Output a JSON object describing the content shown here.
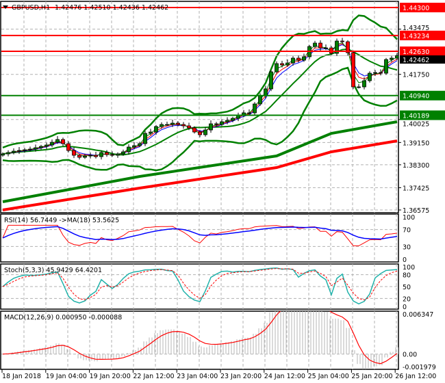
{
  "header": {
    "symbol": "GBPUSD,H1",
    "ohlc": "1.42476 1.42510 1.42436 1.42462"
  },
  "colors": {
    "bull": "#008000",
    "bear": "#ff0000",
    "resistance": "#ff0000",
    "support": "#008000",
    "bollinger": "#008000",
    "ma_fast_blue": "#0000ff",
    "ma_fast_red": "#ff0000",
    "ma_slow_green": "#008000",
    "ma_slow_red": "#ff0000",
    "stoch_main": "#20b2aa",
    "macd_hist": "#c0c0c0"
  },
  "chart_data": [
    {
      "type": "candlestick",
      "title": "GBPUSD,H1 1.42476 1.42510 1.42436 1.42462",
      "ylim": [
        1.36575,
        1.443
      ],
      "y_ticks": [
        "1.43475",
        "1.41750",
        "1.40025",
        "1.39150",
        "1.38300",
        "1.37425",
        "1.36575"
      ],
      "x_ticks": [
        "18 Jan 2018",
        "19 Jan 04:00",
        "19 Jan 20:00",
        "22 Jan 12:00",
        "23 Jan 04:00",
        "23 Jan 20:00",
        "24 Jan 12:00",
        "25 Jan 04:00",
        "25 Jan 20:00",
        "26 Jan 12:00"
      ],
      "close": [
        1.38715,
        1.38767,
        1.38819,
        1.38845,
        1.38871,
        1.38897,
        1.3895,
        1.39002,
        1.39054,
        1.39158,
        1.39263,
        1.39106,
        1.38845,
        1.38662,
        1.38584,
        1.38636,
        1.38662,
        1.3861,
        1.38767,
        1.38689,
        1.38662,
        1.38715,
        1.38793,
        1.38976,
        1.39028,
        1.39106,
        1.39498,
        1.3955,
        1.39759,
        1.39837,
        1.39837,
        1.39889,
        1.39837,
        1.39785,
        1.39706,
        1.3955,
        1.39446,
        1.39628,
        1.39863,
        1.39837,
        1.39941,
        1.39993,
        1.40072,
        1.40202,
        1.40281,
        1.40281,
        1.4062,
        1.40933,
        1.41194,
        1.41847,
        1.4216,
        1.42108,
        1.42186,
        1.42369,
        1.4229,
        1.42421,
        1.42812,
        1.42943,
        1.4276,
        1.4276,
        1.42551,
        1.43021,
        1.42995,
        1.42577,
        1.41272,
        1.41272,
        1.41507,
        1.41794,
        1.4182,
        1.41794,
        1.42316,
        1.42369,
        1.42462
      ],
      "levels": [
        {
          "price": "1.44300",
          "kind": "resistance"
        },
        {
          "price": "1.43234",
          "kind": "resistance"
        },
        {
          "price": "1.42630",
          "kind": "resistance"
        },
        {
          "price": "1.40940",
          "kind": "support"
        },
        {
          "price": "1.40189",
          "kind": "support"
        }
      ],
      "bid": "1.42462",
      "slow_ma_green": {
        "at": [
          0,
          200,
          400,
          480,
          576
        ],
        "values": [
          1.36888,
          1.37853,
          1.38637,
          1.39498,
          1.39941
        ]
      },
      "slow_ma_red": {
        "at": [
          0,
          200,
          400,
          480,
          576
        ],
        "values": [
          1.36575,
          1.3741,
          1.38193,
          1.38793,
          1.39211
        ]
      }
    },
    {
      "type": "line",
      "label": "RSI(14) 56.7449  ->MA(18) 53.5625",
      "y_ticks": [
        "100",
        "70",
        "30",
        "0"
      ],
      "ylim": [
        0,
        100
      ]
    },
    {
      "type": "line",
      "label": "Stoch(5,3,3) 45.9429 64.4201",
      "y_ticks": [
        "100",
        "80",
        "50",
        "20",
        "0"
      ],
      "ylim": [
        0,
        100
      ]
    },
    {
      "type": "bar",
      "label": "MACD(12,26,9) 0.000950 -0.000088",
      "y_ticks": [
        "0.006347",
        "0.00",
        "-0.001979"
      ],
      "ylim": [
        -0.001979,
        0.006347
      ]
    }
  ]
}
